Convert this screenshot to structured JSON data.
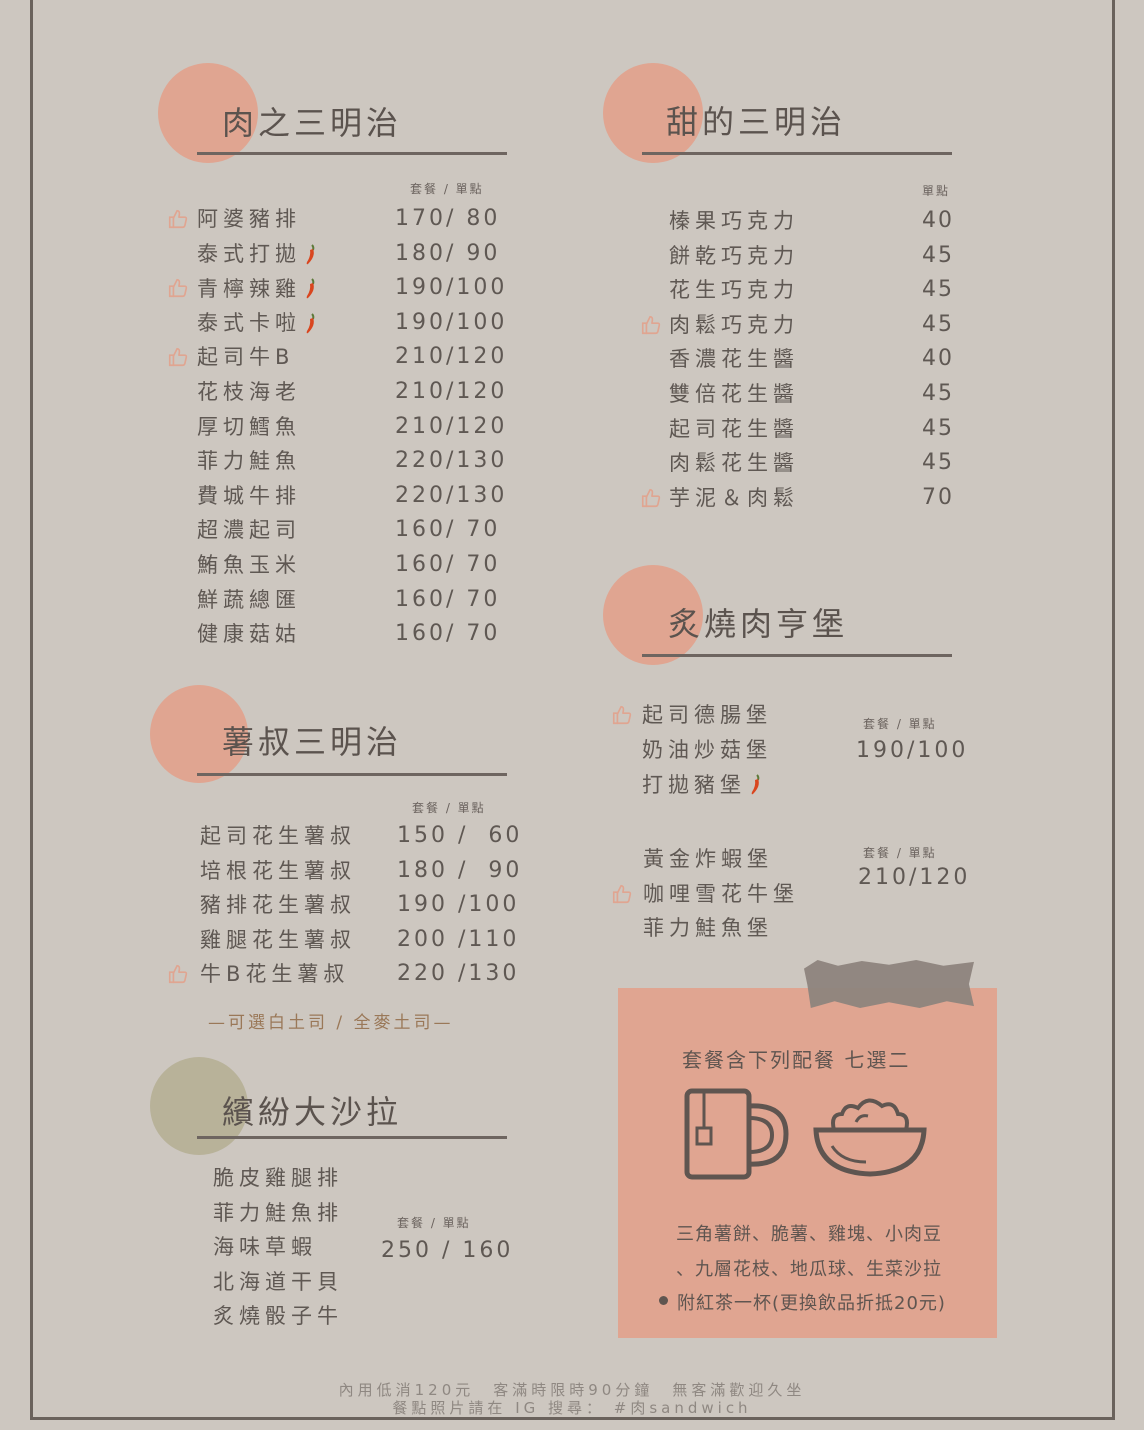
{
  "colors": {
    "background": "#cdc7c0",
    "accent_circle": "#e0a591",
    "olive_circle": "#b8b299",
    "text": "#5f5853",
    "combo_box": "#e0a591",
    "tape": "#8d847d"
  },
  "meat": {
    "title": "肉之三明治",
    "col_head": "套餐 / 單點",
    "items": [
      {
        "name": "阿婆豬排",
        "price": "170/ 80",
        "recommended": true,
        "spicy": false
      },
      {
        "name": "泰式打拋",
        "price": "180/ 90",
        "recommended": false,
        "spicy": true
      },
      {
        "name": "青檸辣雞",
        "price": "190/100",
        "recommended": true,
        "spicy": true
      },
      {
        "name": "泰式卡啦",
        "price": "190/100",
        "recommended": false,
        "spicy": true
      },
      {
        "name": "起司牛B",
        "price": "210/120",
        "recommended": true,
        "spicy": false
      },
      {
        "name": "花枝海老",
        "price": "210/120",
        "recommended": false,
        "spicy": false
      },
      {
        "name": "厚切鱈魚",
        "price": "210/120",
        "recommended": false,
        "spicy": false
      },
      {
        "name": "菲力鮭魚",
        "price": "220/130",
        "recommended": false,
        "spicy": false
      },
      {
        "name": "費城牛排",
        "price": "220/130",
        "recommended": false,
        "spicy": false
      },
      {
        "name": "超濃起司",
        "price": "160/ 70",
        "recommended": false,
        "spicy": false
      },
      {
        "name": "鮪魚玉米",
        "price": "160/ 70",
        "recommended": false,
        "spicy": false
      },
      {
        "name": "鮮蔬總匯",
        "price": "160/ 70",
        "recommended": false,
        "spicy": false
      },
      {
        "name": "健康菇姑",
        "price": "160/ 70",
        "recommended": false,
        "spicy": false
      }
    ]
  },
  "sweet": {
    "title": "甜的三明治",
    "col_head": "單點",
    "items": [
      {
        "name": "榛果巧克力",
        "price": "40",
        "recommended": false
      },
      {
        "name": "餅乾巧克力",
        "price": "45",
        "recommended": false
      },
      {
        "name": "花生巧克力",
        "price": "45",
        "recommended": false
      },
      {
        "name": "肉鬆巧克力",
        "price": "45",
        "recommended": true
      },
      {
        "name": "香濃花生醬",
        "price": "40",
        "recommended": false
      },
      {
        "name": "雙倍花生醬",
        "price": "45",
        "recommended": false
      },
      {
        "name": "起司花生醬",
        "price": "45",
        "recommended": false
      },
      {
        "name": "肉鬆花生醬",
        "price": "45",
        "recommended": false
      },
      {
        "name": "芋泥＆肉鬆",
        "price": "70",
        "recommended": true
      }
    ]
  },
  "burger": {
    "title": "炙燒肉亨堡",
    "group1": {
      "col_head": "套餐 / 單點",
      "price": "190/100",
      "items": [
        {
          "name": "起司德腸堡",
          "recommended": true,
          "spicy": false
        },
        {
          "name": "奶油炒菇堡",
          "recommended": false,
          "spicy": false
        },
        {
          "name": "打拋豬堡",
          "recommended": false,
          "spicy": true
        }
      ]
    },
    "group2": {
      "col_head": "套餐 / 單點",
      "price": "210/120",
      "items": [
        {
          "name": "黃金炸蝦堡",
          "recommended": false
        },
        {
          "name": "咖哩雪花牛堡",
          "recommended": true
        },
        {
          "name": "菲力鮭魚堡",
          "recommended": false
        }
      ]
    }
  },
  "potato": {
    "title": "薯叔三明治",
    "col_head": "套餐 / 單點",
    "items": [
      {
        "name": "起司花生薯叔",
        "price": "150 /  60",
        "recommended": false
      },
      {
        "name": "培根花生薯叔",
        "price": "180 /  90",
        "recommended": false
      },
      {
        "name": "豬排花生薯叔",
        "price": "190 /100",
        "recommended": false
      },
      {
        "name": "雞腿花生薯叔",
        "price": "200 /110",
        "recommended": false
      },
      {
        "name": "牛B花生薯叔",
        "price": "220 /130",
        "recommended": true
      }
    ],
    "note": "—可選白土司 / 全麥土司—"
  },
  "salad": {
    "title": "繽紛大沙拉",
    "col_head": "套餐 / 單點",
    "price": "250 / 160",
    "items": [
      "脆皮雞腿排",
      "菲力鮭魚排",
      "海味草蝦",
      "北海道干貝",
      "炙燒骰子牛"
    ]
  },
  "combo": {
    "title": "套餐含下列配餐 七選二",
    "line1": "三角薯餅、脆薯、雞塊、小肉豆",
    "line2": "、九層花枝、地瓜球、生菜沙拉",
    "line3": "附紅茶一杯(更換飲品折抵20元)",
    "icons": [
      "tea-cup-icon",
      "rice-bowl-icon"
    ]
  },
  "footer": {
    "line1": "內用低消120元　客滿時限時90分鐘　無客滿歡迎久坐",
    "line2": "餐點照片請在 IG 搜尋：  #肉sandwich"
  }
}
